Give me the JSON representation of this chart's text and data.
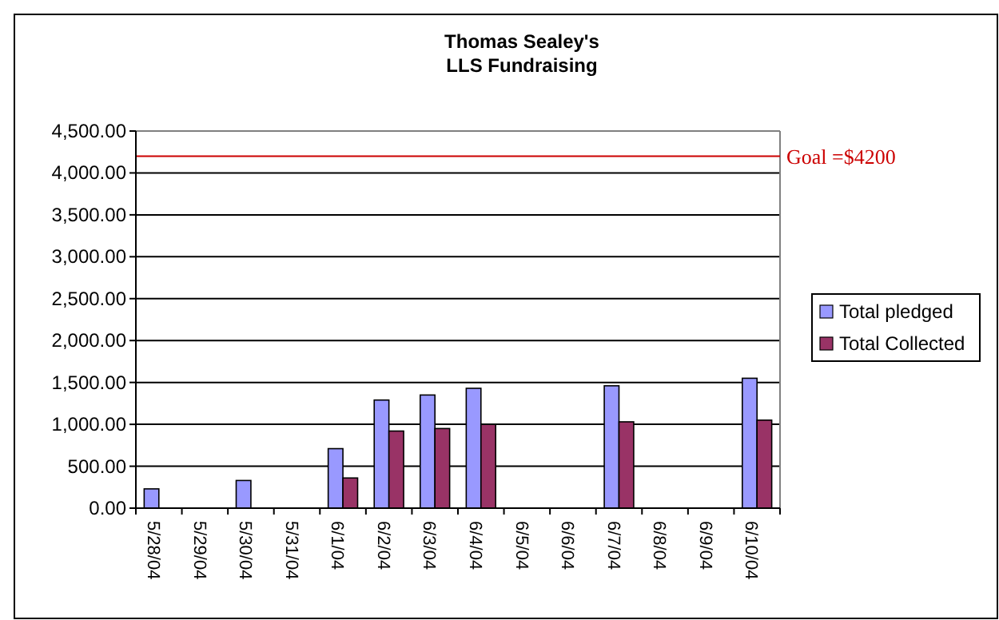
{
  "chart_data": {
    "type": "bar",
    "title": "Thomas Sealey's\nLLS Fundraising",
    "categories": [
      "5/28/04",
      "5/29/04",
      "5/30/04",
      "5/31/04",
      "6/1/04",
      "6/2/04",
      "6/3/04",
      "6/4/04",
      "6/5/04",
      "6/6/04",
      "6/7/04",
      "6/8/04",
      "6/9/04",
      "6/10/04"
    ],
    "series": [
      {
        "name": "Total pledged",
        "color": "#9999ff",
        "values": [
          230,
          null,
          330,
          null,
          710,
          1290,
          1350,
          1430,
          null,
          null,
          1460,
          null,
          null,
          1550
        ]
      },
      {
        "name": "Total Collected",
        "color": "#993366",
        "values": [
          null,
          null,
          null,
          null,
          360,
          920,
          950,
          1000,
          null,
          null,
          1030,
          null,
          null,
          1050
        ]
      }
    ],
    "ylim": [
      0,
      4500
    ],
    "yticks": [
      {
        "value": 0,
        "label": "0.00"
      },
      {
        "value": 500,
        "label": "500.00"
      },
      {
        "value": 1000,
        "label": "1,000.00"
      },
      {
        "value": 1500,
        "label": "1,500.00"
      },
      {
        "value": 2000,
        "label": "2,000.00"
      },
      {
        "value": 2500,
        "label": "2,500.00"
      },
      {
        "value": 3000,
        "label": "3,000.00"
      },
      {
        "value": 3500,
        "label": "3,500.00"
      },
      {
        "value": 4000,
        "label": "4,000.00"
      },
      {
        "value": 4500,
        "label": "4,500.00"
      }
    ],
    "grid": "y",
    "legend": "right",
    "ref_lines": [
      {
        "axis": "y",
        "value": 4200,
        "label": "Goal =$4200",
        "color": "#cc0000"
      }
    ]
  }
}
